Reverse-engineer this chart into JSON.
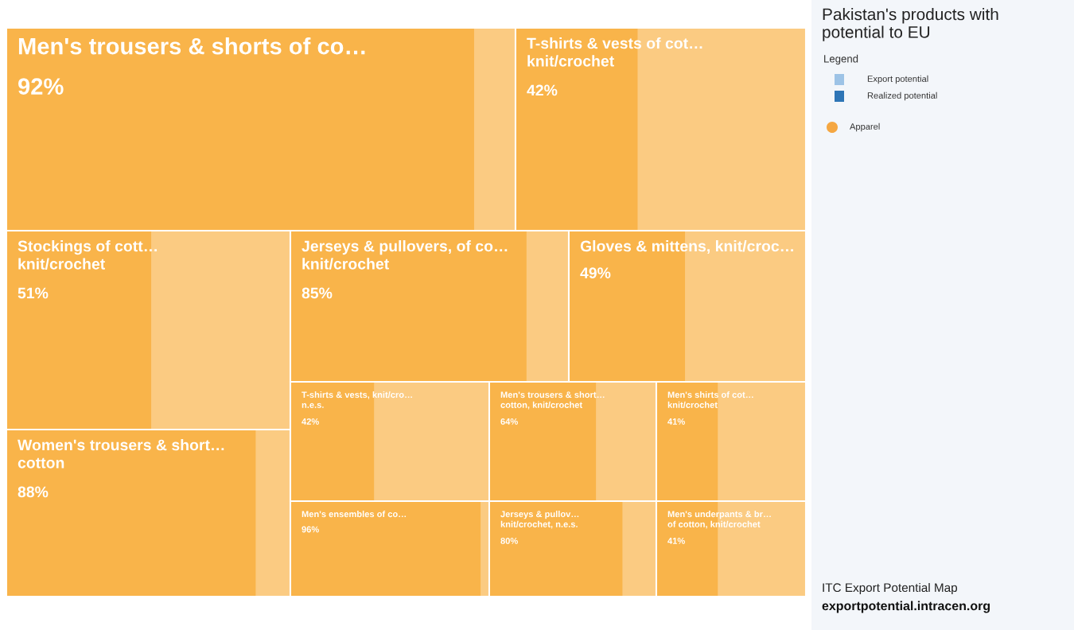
{
  "chart_data": {
    "type": "other",
    "categories": [
      "Men's trousers & shorts of co…",
      "T-shirts & vests of cot…\nknit/crochet",
      "Stockings of cott…\nknit/crochet",
      "Jerseys & pullovers, of co…\nknit/crochet",
      "Gloves & mittens, knit/croc…",
      "Women's trousers & short…\ncotton",
      "T-shirts & vests, knit/cro…\nn.e.s.",
      "Men's trousers & short…\ncotton, knit/crochet",
      "Men's shirts of cot…\nknit/crochet",
      "Men's ensembles of co…",
      "Jerseys & pullov…\nknit/crochet, n.e.s.",
      "Men's underpants & br…\nof cotton, knit/crochet"
    ],
    "colors": [
      "#f9b44a",
      "#f9b44a",
      "#f9b44a",
      "#f9b44a",
      "#f9b44a",
      "#f9b44a",
      "#f9b44a",
      "#f9b44a",
      "#f9b44a",
      "#f9b44a",
      "#f9b44a",
      "#f9b44a"
    ],
    "values": [
      92,
      42,
      51,
      85,
      49,
      88,
      42,
      64,
      41,
      96,
      80,
      41
    ],
    "value_labels": [
      "92%",
      "42%",
      "51%",
      "85%",
      "49%",
      "88%",
      "42%",
      "64%",
      "41%",
      "96%",
      "80%",
      "41%"
    ],
    "legend_title": "Legend",
    "annotations": [
      "Pakistan's products with\npotential to EU",
      "Export potential",
      "Realized potential",
      "Apparel",
      "ITC Export Potential Map",
      "exportpotential.intracen.org"
    ]
  }
}
